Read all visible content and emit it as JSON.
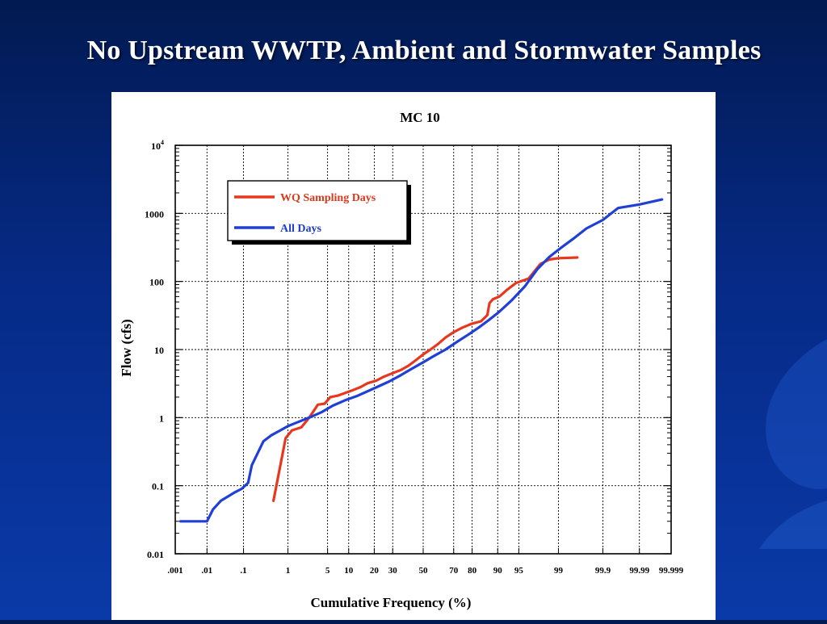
{
  "slide": {
    "title": "No Upstream WWTP, Ambient and Stormwater Samples"
  },
  "colors": {
    "background": "#0a2f95",
    "wq_series": "#e8371f",
    "all_series": "#1f3fd6",
    "legend_wq_text": "#d93a1e",
    "legend_all_text": "#1b3ec9"
  },
  "chart_data": {
    "type": "line",
    "title": "MC 10",
    "xlabel": "Cumulative Frequency (%)",
    "ylabel": "Flow (cfs)",
    "x_scale": "normal-probability",
    "y_scale": "log",
    "xlim": [
      0.001,
      99.999
    ],
    "ylim": [
      0.01,
      10000
    ],
    "grid": true,
    "legend_placement": "top-left",
    "x_ticks": [
      {
        "value": 0.001,
        "label": ".001"
      },
      {
        "value": 0.01,
        "label": ".01"
      },
      {
        "value": 0.1,
        "label": ".1"
      },
      {
        "value": 1,
        "label": "1"
      },
      {
        "value": 5,
        "label": "5"
      },
      {
        "value": 10,
        "label": "10"
      },
      {
        "value": 20,
        "label": "20"
      },
      {
        "value": 30,
        "label": "30"
      },
      {
        "value": 50,
        "label": "50"
      },
      {
        "value": 70,
        "label": "70"
      },
      {
        "value": 80,
        "label": "80"
      },
      {
        "value": 90,
        "label": "90"
      },
      {
        "value": 95,
        "label": "95"
      },
      {
        "value": 99,
        "label": "99"
      },
      {
        "value": 99.9,
        "label": "99.9"
      },
      {
        "value": 99.99,
        "label": "99.99"
      },
      {
        "value": 99.999,
        "label": "99.999"
      }
    ],
    "y_ticks": [
      {
        "value": 0.01,
        "label": "0.01"
      },
      {
        "value": 0.1,
        "label": "0.1"
      },
      {
        "value": 1,
        "label": "1"
      },
      {
        "value": 10,
        "label": "10"
      },
      {
        "value": 100,
        "label": "100"
      },
      {
        "value": 1000,
        "label": "1000"
      },
      {
        "value": 10000,
        "label": "10",
        "sup": "4"
      }
    ],
    "series": [
      {
        "name": "WQ Sampling Days",
        "color": "#e8371f",
        "points": [
          [
            0.5,
            0.06
          ],
          [
            0.9,
            0.5
          ],
          [
            1.2,
            0.65
          ],
          [
            1.8,
            0.72
          ],
          [
            2.5,
            1.0
          ],
          [
            3.5,
            1.55
          ],
          [
            4.5,
            1.6
          ],
          [
            5.5,
            2.0
          ],
          [
            7,
            2.1
          ],
          [
            9,
            2.3
          ],
          [
            11,
            2.5
          ],
          [
            14,
            2.8
          ],
          [
            17,
            3.2
          ],
          [
            21,
            3.5
          ],
          [
            25,
            4.0
          ],
          [
            30,
            4.5
          ],
          [
            35,
            5.0
          ],
          [
            40,
            5.8
          ],
          [
            45,
            7.0
          ],
          [
            50,
            8.5
          ],
          [
            55,
            10.0
          ],
          [
            60,
            12.0
          ],
          [
            65,
            15.0
          ],
          [
            70,
            18.0
          ],
          [
            75,
            21.0
          ],
          [
            80,
            24.0
          ],
          [
            84,
            26.0
          ],
          [
            86.5,
            32.0
          ],
          [
            87.3,
            48.0
          ],
          [
            88.5,
            55.0
          ],
          [
            90.5,
            60.0
          ],
          [
            92.5,
            75.0
          ],
          [
            94.5,
            95.0
          ],
          [
            96.5,
            110.0
          ],
          [
            97.8,
            180.0
          ],
          [
            98.5,
            210.0
          ],
          [
            99.0,
            220.0
          ],
          [
            99.6,
            225.0
          ]
        ]
      },
      {
        "name": "All Days",
        "color": "#1f3fd6",
        "points": [
          [
            0.0015,
            0.03
          ],
          [
            0.01,
            0.03
          ],
          [
            0.015,
            0.045
          ],
          [
            0.025,
            0.06
          ],
          [
            0.04,
            0.07
          ],
          [
            0.06,
            0.08
          ],
          [
            0.09,
            0.09
          ],
          [
            0.13,
            0.11
          ],
          [
            0.16,
            0.2
          ],
          [
            0.22,
            0.3
          ],
          [
            0.3,
            0.45
          ],
          [
            0.45,
            0.55
          ],
          [
            0.7,
            0.65
          ],
          [
            1.0,
            0.75
          ],
          [
            1.5,
            0.85
          ],
          [
            2.5,
            1.0
          ],
          [
            4,
            1.2
          ],
          [
            6,
            1.5
          ],
          [
            9,
            1.8
          ],
          [
            13,
            2.1
          ],
          [
            20,
            2.7
          ],
          [
            28,
            3.4
          ],
          [
            35,
            4.2
          ],
          [
            42,
            5.2
          ],
          [
            50,
            6.5
          ],
          [
            58,
            8.2
          ],
          [
            65,
            10.0
          ],
          [
            72,
            13.0
          ],
          [
            78,
            16.5
          ],
          [
            83,
            21.0
          ],
          [
            87,
            27.0
          ],
          [
            90.5,
            36.0
          ],
          [
            93.5,
            52.0
          ],
          [
            96,
            85.0
          ],
          [
            97.5,
            150.0
          ],
          [
            98.5,
            230.0
          ],
          [
            99.1,
            310.0
          ],
          [
            99.5,
            420.0
          ],
          [
            99.75,
            600.0
          ],
          [
            99.9,
            800.0
          ],
          [
            99.96,
            1200.0
          ],
          [
            99.99,
            1350.0
          ],
          [
            99.998,
            1600.0
          ]
        ]
      }
    ]
  }
}
